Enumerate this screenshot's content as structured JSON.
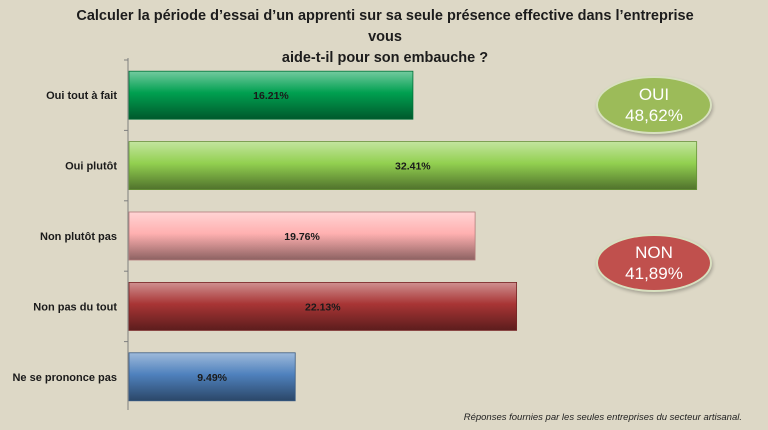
{
  "title_lines": [
    "Calculer la période d’essai d’un apprenti sur sa seule présence effective dans l’entreprise vous",
    "aide-t-il pour son embauche ?"
  ],
  "chart_data": {
    "type": "bar",
    "orientation": "horizontal",
    "categories": [
      "Oui tout à fait",
      "Oui plutôt",
      "Non plutôt pas",
      "Non pas du tout",
      "Ne se prononce pas"
    ],
    "values": [
      16.21,
      32.41,
      19.76,
      22.13,
      9.49
    ],
    "value_labels": [
      "16.21%",
      "32.41%",
      "19.76%",
      "22.13%",
      "9.49%"
    ],
    "colors": [
      "#00a050",
      "#92d050",
      "#ffb0b0",
      "#a83535",
      "#4f81bd"
    ],
    "xlim": [
      0,
      33
    ],
    "grid": false,
    "legend": "none"
  },
  "summary": {
    "yes": {
      "label": "OUI",
      "value": "48,62%",
      "color": "#9cbb59"
    },
    "no": {
      "label": "NON",
      "value": "41,89%",
      "color": "#c0504d"
    }
  },
  "footnote": "Réponses fournies par les seules entreprises du secteur artisanal."
}
